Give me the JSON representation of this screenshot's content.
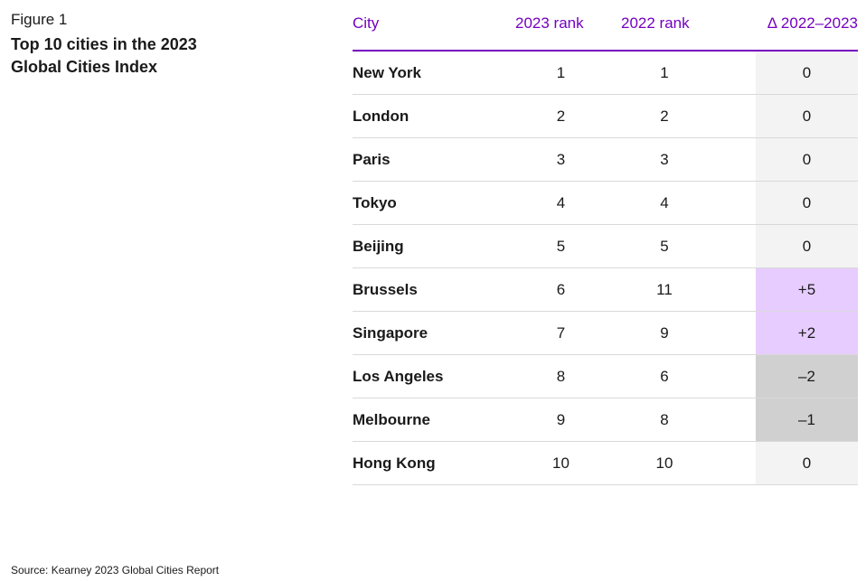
{
  "figure": {
    "label": "Figure 1",
    "title": "Top 10 cities in the 2023 Global Cities Index",
    "source": "Source: Kearney 2023 Global Cities Report"
  },
  "colors": {
    "accent": "#7500c0",
    "increase": "#e7ccff",
    "decrease": "#d0d0d0",
    "unchanged": "#f3f3f3"
  },
  "chart_data": {
    "type": "table",
    "columns": [
      "City",
      "2023 rank",
      "2022 rank",
      "Δ 2022–2023"
    ],
    "rows": [
      {
        "city": "New York",
        "rank_2023": "1",
        "rank_2022": "1",
        "delta": "0",
        "trend": "none"
      },
      {
        "city": "London",
        "rank_2023": "2",
        "rank_2022": "2",
        "delta": "0",
        "trend": "none"
      },
      {
        "city": "Paris",
        "rank_2023": "3",
        "rank_2022": "3",
        "delta": "0",
        "trend": "none"
      },
      {
        "city": "Tokyo",
        "rank_2023": "4",
        "rank_2022": "4",
        "delta": "0",
        "trend": "none"
      },
      {
        "city": "Beijing",
        "rank_2023": "5",
        "rank_2022": "5",
        "delta": "0",
        "trend": "none"
      },
      {
        "city": "Brussels",
        "rank_2023": "6",
        "rank_2022": "11",
        "delta": "+5",
        "trend": "up"
      },
      {
        "city": "Singapore",
        "rank_2023": "7",
        "rank_2022": "9",
        "delta": "+2",
        "trend": "up"
      },
      {
        "city": "Los Angeles",
        "rank_2023": "8",
        "rank_2022": "6",
        "delta": "–2",
        "trend": "down"
      },
      {
        "city": "Melbourne",
        "rank_2023": "9",
        "rank_2022": "8",
        "delta": "–1",
        "trend": "down"
      },
      {
        "city": "Hong Kong",
        "rank_2023": "10",
        "rank_2022": "10",
        "delta": "0",
        "trend": "none"
      }
    ]
  }
}
